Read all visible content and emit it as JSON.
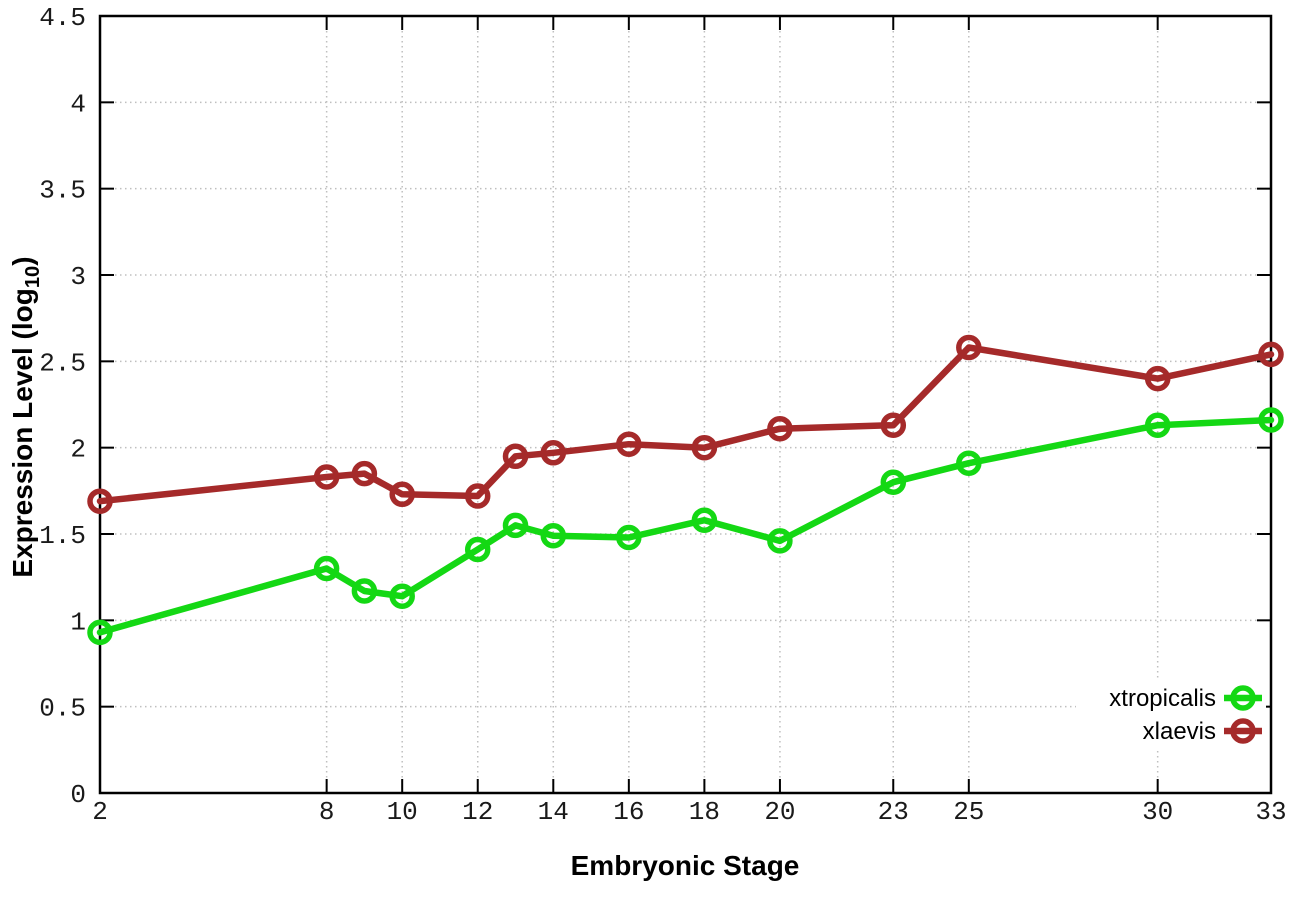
{
  "page": {
    "background": "#ffffff"
  },
  "chart_data": {
    "type": "line",
    "title": "",
    "xlabel": "Embryonic Stage",
    "ylabel": "Expression Level (log10)",
    "ylabel_parts": {
      "main": "Expression Level (log",
      "sub": "10",
      "end": ")"
    },
    "xlim": [
      2,
      33
    ],
    "ylim": [
      0,
      4.5
    ],
    "x_ticks": [
      2,
      8,
      10,
      12,
      14,
      16,
      18,
      20,
      23,
      25,
      30,
      33
    ],
    "y_ticks": [
      0,
      0.5,
      1,
      1.5,
      2,
      2.5,
      3,
      3.5,
      4,
      4.5
    ],
    "grid": true,
    "legend": {
      "position": "bottom-right",
      "entries": [
        "xtropicalis",
        "xlaevis"
      ]
    },
    "x_values": [
      2,
      8,
      9,
      10,
      12,
      13,
      14,
      16,
      18,
      20,
      23,
      25,
      30,
      33
    ],
    "series": [
      {
        "name": "xtropicalis",
        "color": "#14d814",
        "values": [
          0.93,
          1.3,
          1.17,
          1.14,
          1.41,
          1.55,
          1.49,
          1.48,
          1.58,
          1.46,
          1.8,
          1.91,
          2.13,
          2.16
        ]
      },
      {
        "name": "xlaevis",
        "color": "#a52a2a",
        "values": [
          1.69,
          1.83,
          1.85,
          1.73,
          1.72,
          1.95,
          1.97,
          2.02,
          2.0,
          2.11,
          2.13,
          2.58,
          2.4,
          2.54
        ]
      }
    ],
    "colors": {
      "grid": "#bfbfbf",
      "axis": "#000000",
      "text": "#000000"
    }
  }
}
